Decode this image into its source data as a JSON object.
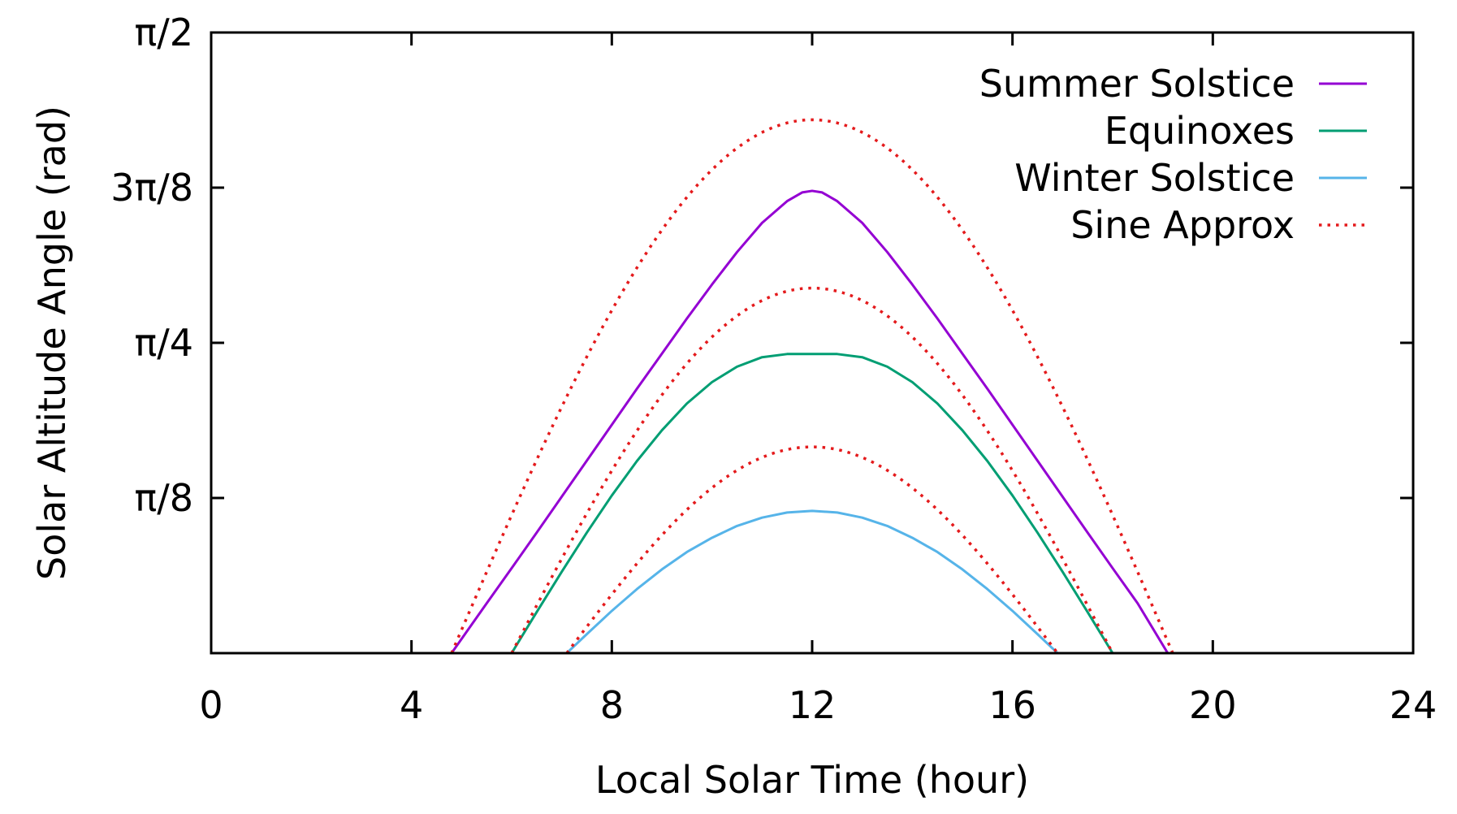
{
  "chart_data": {
    "type": "line",
    "title": "",
    "xlabel": "Local Solar Time (hour)",
    "ylabel": "Solar Altitude Angle (rad)",
    "xlim": [
      0,
      24
    ],
    "ylim": [
      0,
      1.5708
    ],
    "grid": false,
    "legend_position": "top-right",
    "x_ticks": [
      {
        "value": 0,
        "label": "0"
      },
      {
        "value": 4,
        "label": "4"
      },
      {
        "value": 8,
        "label": "8"
      },
      {
        "value": 12,
        "label": "12"
      },
      {
        "value": 16,
        "label": "16"
      },
      {
        "value": 20,
        "label": "20"
      },
      {
        "value": 24,
        "label": "24"
      }
    ],
    "y_ticks": [
      {
        "value": 0.3927,
        "label": "π/8"
      },
      {
        "value": 0.7854,
        "label": "π/4"
      },
      {
        "value": 1.1781,
        "label": "3π/8"
      },
      {
        "value": 1.5708,
        "label": "π/2"
      }
    ],
    "series": [
      {
        "name": "Summer Solstice",
        "color": "#9400d3",
        "style": "solid",
        "x": [
          4.8,
          5.5,
          6.0,
          6.5,
          7.0,
          7.5,
          8.0,
          8.5,
          9.0,
          9.5,
          10.0,
          10.5,
          11.0,
          11.5,
          11.8,
          12.0,
          12.2,
          12.5,
          13.0,
          13.5,
          14.0,
          14.5,
          15.0,
          15.5,
          16.0,
          16.5,
          17.0,
          17.5,
          18.0,
          18.5,
          19.1
        ],
        "y": [
          0.0,
          0.126,
          0.215,
          0.305,
          0.396,
          0.487,
          0.578,
          0.669,
          0.758,
          0.847,
          0.933,
          1.015,
          1.089,
          1.144,
          1.166,
          1.17,
          1.166,
          1.144,
          1.089,
          1.015,
          0.933,
          0.847,
          0.758,
          0.669,
          0.578,
          0.487,
          0.396,
          0.305,
          0.215,
          0.126,
          0.0
        ]
      },
      {
        "name": "Equinoxes",
        "color": "#009e73",
        "style": "solid",
        "x": [
          6.0,
          6.5,
          7.0,
          7.5,
          8.0,
          8.5,
          9.0,
          9.5,
          10.0,
          10.5,
          11.0,
          11.5,
          12.0,
          12.5,
          13.0,
          13.5,
          14.0,
          14.5,
          15.0,
          15.5,
          16.0,
          16.5,
          17.0,
          17.5,
          18.0
        ],
        "y": [
          0.0,
          0.104,
          0.206,
          0.305,
          0.399,
          0.486,
          0.564,
          0.632,
          0.686,
          0.725,
          0.749,
          0.757,
          0.757,
          0.757,
          0.749,
          0.725,
          0.686,
          0.632,
          0.564,
          0.486,
          0.399,
          0.305,
          0.206,
          0.104,
          0.0
        ]
      },
      {
        "name": "Winter Solstice",
        "color": "#56b4e9",
        "style": "solid",
        "x": [
          7.1,
          7.5,
          8.0,
          8.5,
          9.0,
          9.5,
          10.0,
          10.5,
          11.0,
          11.5,
          12.0,
          12.5,
          13.0,
          13.5,
          14.0,
          14.5,
          15.0,
          15.5,
          16.0,
          16.5,
          16.9
        ],
        "y": [
          0.0,
          0.048,
          0.107,
          0.162,
          0.212,
          0.256,
          0.292,
          0.322,
          0.343,
          0.356,
          0.36,
          0.356,
          0.343,
          0.322,
          0.292,
          0.256,
          0.212,
          0.162,
          0.107,
          0.048,
          0.0
        ]
      },
      {
        "name": "Sine Approx",
        "color": "#e41a1c",
        "style": "dotted",
        "segments": [
          {
            "peak_time": 12.0,
            "sunrise": 4.8,
            "peak": 1.35
          },
          {
            "peak_time": 12.0,
            "sunrise": 6.0,
            "peak": 0.924
          },
          {
            "peak_time": 12.0,
            "sunrise": 7.1,
            "peak": 0.522
          }
        ]
      }
    ]
  }
}
